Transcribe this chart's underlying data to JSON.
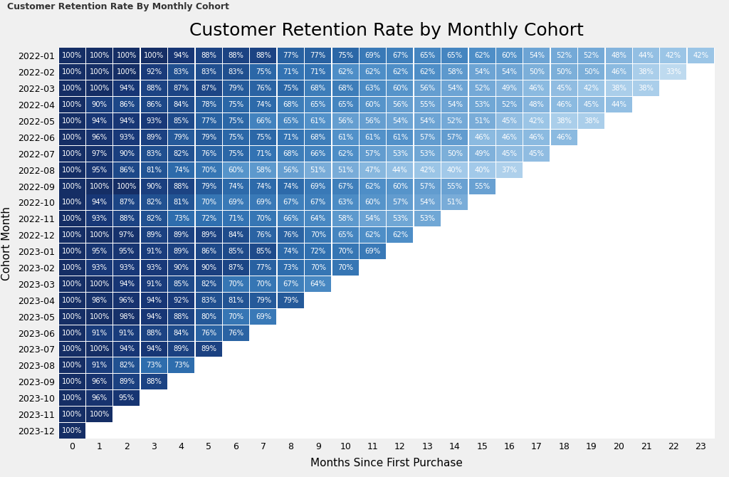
{
  "title": "Customer Retention Rate by Monthly Cohort",
  "subtitle": "Customer Retention Rate By Monthly Cohort",
  "xlabel": "Months Since First Purchase",
  "ylabel": "Cohort Month",
  "cohorts": [
    "2022-01",
    "2022-02",
    "2022-03",
    "2022-04",
    "2022-05",
    "2022-06",
    "2022-07",
    "2022-08",
    "2022-09",
    "2022-10",
    "2022-11",
    "2022-12",
    "2023-01",
    "2023-02",
    "2023-03",
    "2023-04",
    "2023-05",
    "2023-06",
    "2023-07",
    "2023-08",
    "2023-09",
    "2023-10",
    "2023-11",
    "2023-12"
  ],
  "data": [
    [
      100,
      100,
      100,
      100,
      94,
      88,
      88,
      88,
      77,
      77,
      75,
      69,
      67,
      65,
      65,
      62,
      60,
      54,
      52,
      52,
      48,
      44,
      42,
      42
    ],
    [
      100,
      100,
      100,
      92,
      83,
      83,
      83,
      75,
      71,
      71,
      62,
      62,
      62,
      62,
      58,
      54,
      54,
      50,
      50,
      50,
      46,
      38,
      33,
      null
    ],
    [
      100,
      100,
      94,
      88,
      87,
      87,
      79,
      76,
      75,
      68,
      68,
      63,
      60,
      56,
      54,
      52,
      49,
      46,
      45,
      42,
      38,
      38,
      null,
      null
    ],
    [
      100,
      90,
      86,
      86,
      84,
      78,
      75,
      74,
      68,
      65,
      65,
      60,
      56,
      55,
      54,
      53,
      52,
      48,
      46,
      45,
      44,
      null,
      null,
      null
    ],
    [
      100,
      94,
      94,
      93,
      85,
      77,
      75,
      66,
      65,
      61,
      56,
      56,
      54,
      54,
      52,
      51,
      45,
      42,
      38,
      38,
      null,
      null,
      null,
      null
    ],
    [
      100,
      96,
      93,
      89,
      79,
      79,
      75,
      75,
      71,
      68,
      61,
      61,
      61,
      57,
      57,
      46,
      46,
      46,
      46,
      null,
      null,
      null,
      null,
      null
    ],
    [
      100,
      97,
      90,
      83,
      82,
      76,
      75,
      71,
      68,
      66,
      62,
      57,
      53,
      53,
      50,
      49,
      45,
      45,
      null,
      null,
      null,
      null,
      null,
      null
    ],
    [
      100,
      95,
      86,
      81,
      74,
      70,
      60,
      58,
      56,
      51,
      51,
      47,
      44,
      42,
      40,
      40,
      37,
      null,
      null,
      null,
      null,
      null,
      null,
      null
    ],
    [
      100,
      100,
      100,
      90,
      88,
      79,
      74,
      74,
      74,
      69,
      67,
      62,
      60,
      57,
      55,
      55,
      null,
      null,
      null,
      null,
      null,
      null,
      null,
      null
    ],
    [
      100,
      94,
      87,
      82,
      81,
      70,
      69,
      69,
      67,
      67,
      63,
      60,
      57,
      54,
      51,
      null,
      null,
      null,
      null,
      null,
      null,
      null,
      null,
      null
    ],
    [
      100,
      93,
      88,
      82,
      73,
      72,
      71,
      70,
      66,
      64,
      58,
      54,
      53,
      53,
      null,
      null,
      null,
      null,
      null,
      null,
      null,
      null,
      null,
      null
    ],
    [
      100,
      100,
      97,
      89,
      89,
      89,
      84,
      76,
      76,
      70,
      65,
      62,
      62,
      null,
      null,
      null,
      null,
      null,
      null,
      null,
      null,
      null,
      null,
      null
    ],
    [
      100,
      95,
      95,
      91,
      89,
      86,
      85,
      85,
      74,
      72,
      70,
      69,
      null,
      null,
      null,
      null,
      null,
      null,
      null,
      null,
      null,
      null,
      null,
      null
    ],
    [
      100,
      93,
      93,
      93,
      90,
      90,
      87,
      77,
      73,
      70,
      70,
      null,
      null,
      null,
      null,
      null,
      null,
      null,
      null,
      null,
      null,
      null,
      null,
      null
    ],
    [
      100,
      100,
      94,
      91,
      85,
      82,
      70,
      70,
      67,
      64,
      null,
      null,
      null,
      null,
      null,
      null,
      null,
      null,
      null,
      null,
      null,
      null,
      null,
      null
    ],
    [
      100,
      98,
      96,
      94,
      92,
      83,
      81,
      79,
      79,
      null,
      null,
      null,
      null,
      null,
      null,
      null,
      null,
      null,
      null,
      null,
      null,
      null,
      null,
      null
    ],
    [
      100,
      100,
      98,
      94,
      88,
      80,
      70,
      69,
      null,
      null,
      null,
      null,
      null,
      null,
      null,
      null,
      null,
      null,
      null,
      null,
      null,
      null,
      null,
      null
    ],
    [
      100,
      91,
      91,
      88,
      84,
      76,
      76,
      null,
      null,
      null,
      null,
      null,
      null,
      null,
      null,
      null,
      null,
      null,
      null,
      null,
      null,
      null,
      null,
      null
    ],
    [
      100,
      100,
      94,
      94,
      89,
      89,
      null,
      null,
      null,
      null,
      null,
      null,
      null,
      null,
      null,
      null,
      null,
      null,
      null,
      null,
      null,
      null,
      null,
      null
    ],
    [
      100,
      91,
      82,
      73,
      73,
      null,
      null,
      null,
      null,
      null,
      null,
      null,
      null,
      null,
      null,
      null,
      null,
      null,
      null,
      null,
      null,
      null,
      null,
      null
    ],
    [
      100,
      96,
      89,
      88,
      null,
      null,
      null,
      null,
      null,
      null,
      null,
      null,
      null,
      null,
      null,
      null,
      null,
      null,
      null,
      null,
      null,
      null,
      null,
      null
    ],
    [
      100,
      96,
      95,
      null,
      null,
      null,
      null,
      null,
      null,
      null,
      null,
      null,
      null,
      null,
      null,
      null,
      null,
      null,
      null,
      null,
      null,
      null,
      null,
      null
    ],
    [
      100,
      100,
      null,
      null,
      null,
      null,
      null,
      null,
      null,
      null,
      null,
      null,
      null,
      null,
      null,
      null,
      null,
      null,
      null,
      null,
      null,
      null,
      null,
      null
    ],
    [
      100,
      null,
      null,
      null,
      null,
      null,
      null,
      null,
      null,
      null,
      null,
      null,
      null,
      null,
      null,
      null,
      null,
      null,
      null,
      null,
      null,
      null,
      null,
      null
    ]
  ],
  "bg_color": "#f5f5f5",
  "vmin": 30,
  "vmax": 100,
  "title_fontsize": 18,
  "tick_fontsize": 9,
  "cell_fontsize": 7.2,
  "n_cols": 24
}
